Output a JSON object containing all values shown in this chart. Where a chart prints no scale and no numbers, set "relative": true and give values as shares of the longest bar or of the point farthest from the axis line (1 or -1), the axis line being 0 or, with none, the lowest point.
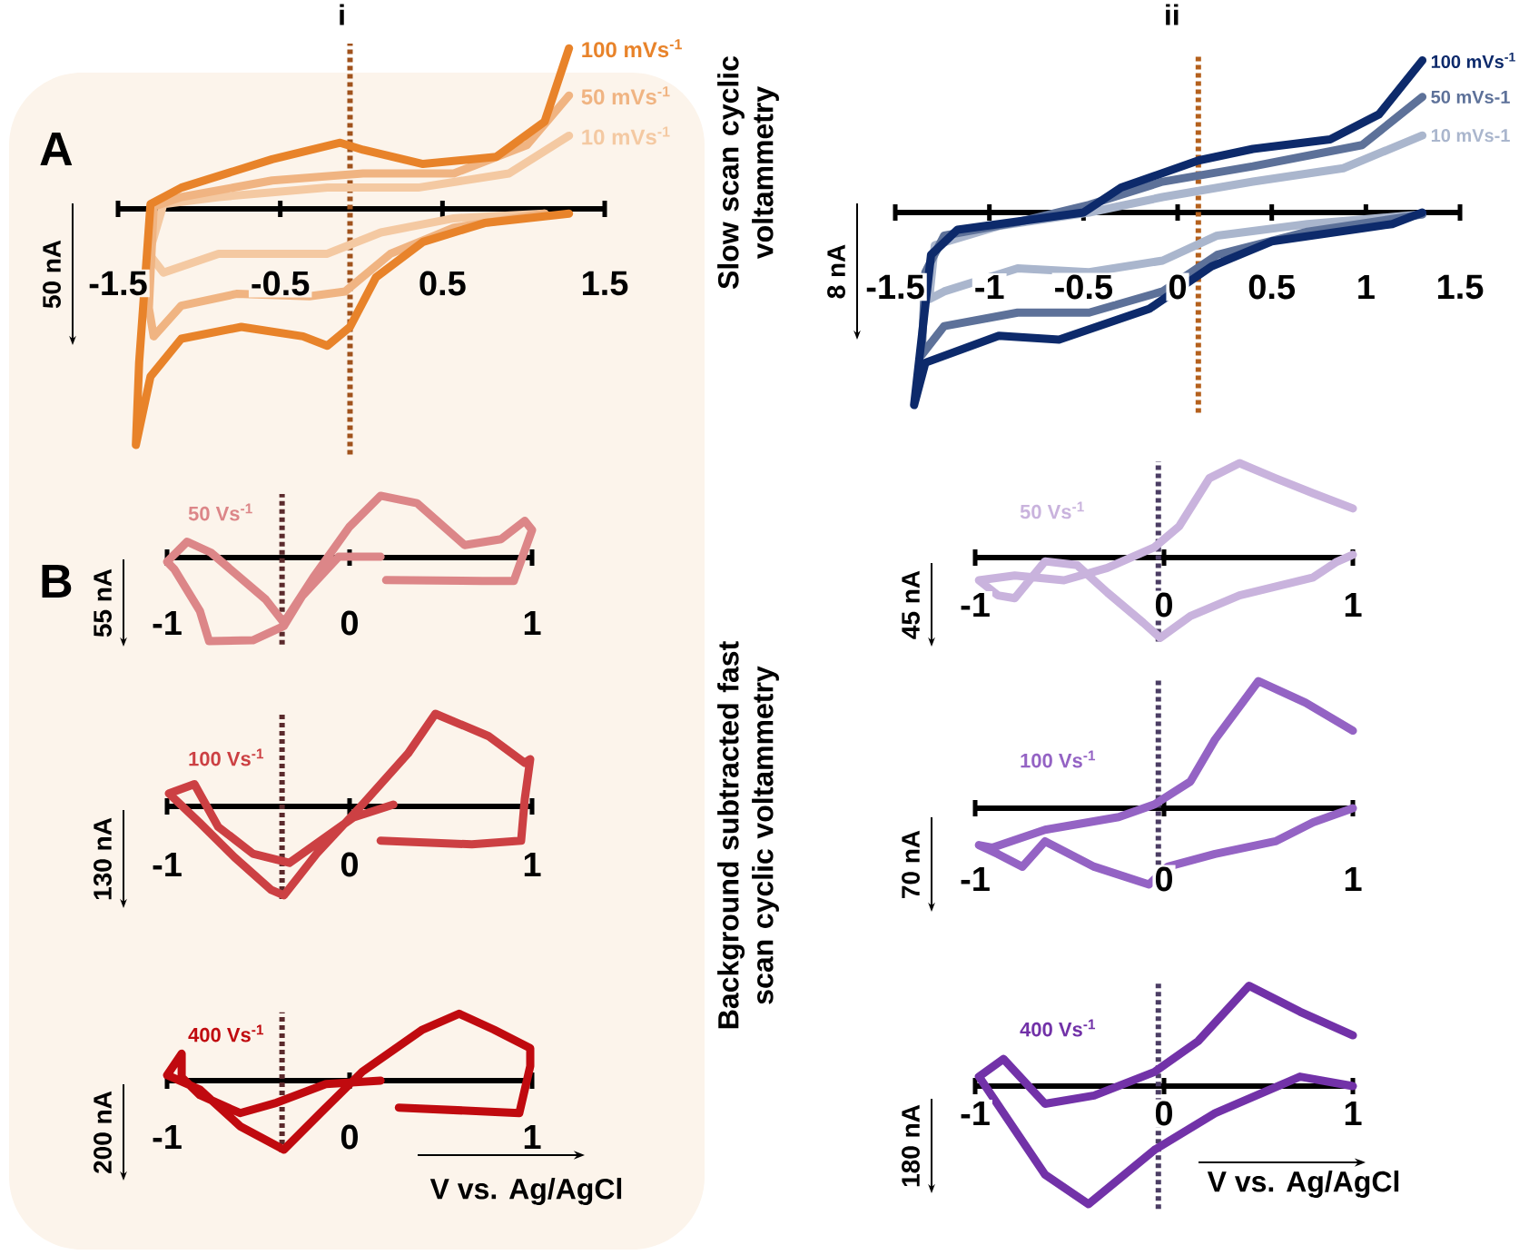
{
  "chart_data": [
    {
      "type": "line",
      "title": "i",
      "relative": true,
      "xlim": [
        -1.5,
        1.5
      ],
      "xticks": [
        -1.5,
        -0.5,
        0.5,
        1.5
      ],
      "annotations": [
        "A",
        "50 nA",
        "Slow scan cyclic voltammetry"
      ],
      "ref_lines": [
        {
          "axis": "x",
          "value": -0.07,
          "color": "#a0521c",
          "line_style": "dotted"
        }
      ],
      "series": [
        {
          "name": "100 mVs$^{-1}$",
          "color": "#e8832a",
          "x": [
            1.28,
            1.13,
            0.83,
            0.38,
            0.01,
            -0.13,
            -0.55,
            -1.11,
            -1.3,
            -1.33,
            -1.37,
            -1.39,
            -1.3,
            -1.11,
            -0.74,
            -0.36,
            -0.21,
            -0.07,
            0.09,
            0.38,
            0.76,
            1.28
          ],
          "values": [
            0.68,
            0.37,
            0.22,
            0.19,
            0.25,
            0.28,
            0.21,
            0.09,
            0.02,
            -0.27,
            -0.65,
            -1.0,
            -0.71,
            -0.55,
            -0.5,
            -0.54,
            -0.58,
            -0.5,
            -0.29,
            -0.14,
            -0.06,
            -0.02
          ]
        },
        {
          "name": "50 mVs$^{-1}$",
          "color": "#f0b482",
          "x": [
            1.28,
            1.02,
            0.57,
            0.01,
            -0.55,
            -1.11,
            -1.28,
            -1.31,
            -1.28,
            -1.11,
            -0.77,
            -0.32,
            -0.1,
            0.18,
            0.57,
            1.13
          ],
          "values": [
            0.48,
            0.27,
            0.15,
            0.15,
            0.12,
            0.05,
            0.01,
            -0.42,
            -0.54,
            -0.41,
            -0.36,
            -0.37,
            -0.35,
            -0.19,
            -0.08,
            -0.02
          ]
        },
        {
          "name": "10 mVs$^{-1}$",
          "color": "#f4c9a2",
          "x": [
            1.28,
            0.91,
            0.35,
            -0.21,
            -0.88,
            -1.22,
            -1.31,
            -1.22,
            -0.88,
            -0.21,
            0.12,
            0.57,
            1.13
          ],
          "values": [
            0.31,
            0.15,
            0.09,
            0.09,
            0.05,
            0.02,
            -0.19,
            -0.27,
            -0.19,
            -0.19,
            -0.1,
            -0.04,
            -0.02
          ]
        }
      ]
    },
    {
      "type": "line",
      "title": "ii",
      "relative": true,
      "xlim": [
        -1.5,
        1.5
      ],
      "xticks": [
        -1.5,
        -1,
        -0.5,
        0,
        0.5,
        1,
        1.5
      ],
      "annotations": [
        "8 nA"
      ],
      "ref_lines": [
        {
          "axis": "x",
          "value": 0.11,
          "color": "#b4601c",
          "line_style": "dotted"
        }
      ],
      "series": [
        {
          "name": "100 mVs$^{-1}$",
          "color": "#0d2a6b",
          "x": [
            1.3,
            1.07,
            0.81,
            0.4,
            0.11,
            -0.3,
            -0.5,
            -0.95,
            -1.17,
            -1.31,
            -1.4,
            -1.34,
            -0.95,
            -0.63,
            -0.15,
            0.18,
            0.5,
            1.14,
            1.3
          ],
          "values": [
            0.79,
            0.51,
            0.38,
            0.33,
            0.27,
            0.13,
            0,
            -0.06,
            -0.09,
            -0.22,
            -1.0,
            -0.78,
            -0.64,
            -0.66,
            -0.5,
            -0.28,
            -0.15,
            -0.06,
            0
          ]
        },
        {
          "name": "50 mVs-1",
          "color": "#5d7199",
          "x": [
            1.3,
            0.98,
            0.4,
            -0.08,
            -0.47,
            -0.85,
            -1.24,
            -1.34,
            -1.36,
            -1.24,
            -0.85,
            -0.47,
            -0.08,
            0.21,
            0.69,
            1.3
          ],
          "values": [
            0.6,
            0.35,
            0.24,
            0.16,
            0.04,
            -0.05,
            -0.12,
            -0.31,
            -0.74,
            -0.59,
            -0.52,
            -0.52,
            -0.41,
            -0.22,
            -0.1,
            -0.01
          ]
        },
        {
          "name": "10 mVs-1",
          "color": "#aab6cd",
          "x": [
            1.3,
            0.88,
            0.4,
            -0.08,
            -0.47,
            -0.95,
            -1.29,
            -1.32,
            -1.24,
            -0.85,
            -0.47,
            -0.08,
            0.21,
            0.69,
            1.3
          ],
          "values": [
            0.4,
            0.23,
            0.16,
            0.08,
            0,
            -0.07,
            -0.17,
            -0.45,
            -0.41,
            -0.29,
            -0.31,
            -0.25,
            -0.12,
            -0.06,
            -0.01
          ]
        }
      ]
    },
    {
      "type": "line",
      "relative": true,
      "xlim": [
        -1,
        1
      ],
      "xticks": [
        -1,
        0,
        1
      ],
      "annotations": [
        "B",
        "55 nA",
        "Background subtracted fast scan cyclic voltammetry"
      ],
      "ref_lines": [
        {
          "axis": "x",
          "value": -0.37,
          "color": "#5b2a2c",
          "line_style": "dotted"
        }
      ],
      "series": [
        {
          "name": "50 Vs$^{-1}$",
          "color": "#dc8688",
          "x": [
            0.17,
            -0.06,
            -0.26,
            -0.36,
            -0.53,
            -0.77,
            -0.82,
            -0.96,
            -1.0,
            -0.89,
            -0.76,
            -0.46,
            -0.36,
            -0.2,
            0.0,
            0.17,
            0.37,
            0.63,
            0.83,
            0.96,
            1.0,
            0.9,
            0.73,
            0.2
          ],
          "values": [
            0.01,
            0.01,
            -0.46,
            -0.82,
            -0.99,
            -1.0,
            -0.64,
            -0.14,
            -0.05,
            0.19,
            0.06,
            -0.5,
            -0.78,
            -0.24,
            0.37,
            0.74,
            0.65,
            0.15,
            0.22,
            0.44,
            0.33,
            -0.28,
            -0.28,
            -0.27
          ]
        }
      ]
    },
    {
      "type": "line",
      "relative": true,
      "xlim": [
        -1,
        1
      ],
      "xticks": [
        -1,
        0,
        1
      ],
      "annotations": [
        "130 nA"
      ],
      "ref_lines": [
        {
          "axis": "x",
          "value": -0.37,
          "color": "#5b2a2c",
          "line_style": "dotted"
        }
      ],
      "series": [
        {
          "name": "100 Vs$^{-1}$",
          "color": "#cc4043",
          "x": [
            0.24,
            0.02,
            -0.33,
            -0.53,
            -0.72,
            -0.85,
            -0.99,
            -0.82,
            -0.63,
            -0.43,
            -0.36,
            -0.18,
            0.07,
            0.32,
            0.47,
            0.76,
            0.96,
            0.99,
            0.96,
            0.94,
            0.67,
            0.17
          ],
          "values": [
            0.02,
            -0.12,
            -0.61,
            -0.51,
            -0.22,
            0.24,
            0.14,
            -0.18,
            -0.55,
            -0.9,
            -0.96,
            -0.51,
            0.02,
            0.57,
            1.0,
            0.76,
            0.47,
            0.51,
            0.08,
            -0.37,
            -0.41,
            -0.37
          ]
        }
      ]
    },
    {
      "type": "line",
      "relative": true,
      "xlim": [
        -1,
        1
      ],
      "xticks": [
        -1,
        0,
        1
      ],
      "xlabel": "V vs. Ag/AgCl",
      "annotations": [
        "200 nA"
      ],
      "ref_lines": [
        {
          "axis": "x",
          "value": -0.37,
          "color": "#5b2a2c",
          "line_style": "dotted"
        }
      ],
      "series": [
        {
          "name": "400 Vs$^{-1}$",
          "color": "#c00a0f",
          "x": [
            0.17,
            -0.13,
            -0.4,
            -0.6,
            -0.82,
            -0.92,
            -0.92,
            -1.0,
            -0.82,
            -0.6,
            -0.36,
            -0.16,
            0.07,
            0.4,
            0.6,
            0.79,
            0.99,
            0.99,
            0.93,
            0.27
          ],
          "values": [
            0,
            -0.05,
            -0.32,
            -0.47,
            -0.21,
            0.05,
            0.39,
            0.08,
            -0.13,
            -0.66,
            -1.0,
            -0.47,
            0.13,
            0.74,
            0.97,
            0.74,
            0.47,
            0.21,
            -0.47,
            -0.39
          ]
        }
      ]
    },
    {
      "type": "line",
      "relative": true,
      "xlim": [
        -1,
        1
      ],
      "xticks": [
        -1,
        0,
        1
      ],
      "annotations": [
        "45 nA"
      ],
      "ref_lines": [
        {
          "axis": "x",
          "value": -0.03,
          "color": "#4b3d63",
          "line_style": "dotted"
        }
      ],
      "series": [
        {
          "name": "50 Vs$^{-1}$",
          "color": "#c9b3dd",
          "x": [
            1.0,
            0.79,
            0.59,
            0.4,
            0.24,
            0.08,
            -0.05,
            -0.3,
            -0.53,
            -0.79,
            -0.98,
            -0.88,
            -0.79,
            -0.63,
            -0.46,
            -0.3,
            -0.11,
            -0.02,
            0.14,
            0.4,
            0.79,
            0.91,
            1.0
          ],
          "values": [
            0.52,
            0.68,
            0.84,
            1.0,
            0.84,
            0.33,
            0.11,
            -0.11,
            -0.24,
            -0.19,
            -0.24,
            -0.4,
            -0.43,
            -0.04,
            -0.08,
            -0.37,
            -0.69,
            -0.85,
            -0.62,
            -0.4,
            -0.21,
            -0.05,
            0.03
          ]
        }
      ]
    },
    {
      "type": "line",
      "relative": true,
      "xlim": [
        -1,
        1
      ],
      "xticks": [
        -1,
        0,
        1
      ],
      "annotations": [
        "70 nA"
      ],
      "ref_lines": [
        {
          "axis": "x",
          "value": -0.03,
          "color": "#4b3d63",
          "line_style": "dotted"
        }
      ],
      "series": [
        {
          "name": "100 Vs$^{-1}$",
          "color": "#9463c4",
          "x": [
            1.0,
            0.75,
            0.5,
            0.27,
            0.14,
            -0.05,
            -0.24,
            -0.63,
            -0.91,
            -0.98,
            -0.88,
            -0.75,
            -0.63,
            -0.37,
            -0.08,
            0.02,
            0.27,
            0.59,
            0.79,
            1.0
          ],
          "values": [
            0.61,
            0.83,
            1.0,
            0.54,
            0.21,
            0.03,
            -0.07,
            -0.17,
            -0.31,
            -0.29,
            -0.36,
            -0.46,
            -0.26,
            -0.46,
            -0.6,
            -0.46,
            -0.36,
            -0.26,
            -0.11,
            0.0
          ]
        }
      ]
    },
    {
      "type": "line",
      "relative": true,
      "xlim": [
        -1,
        1
      ],
      "xticks": [
        -1,
        0,
        1
      ],
      "xlabel": "V vs. Ag/AgCl",
      "annotations": [
        "180 nA"
      ],
      "ref_lines": [
        {
          "axis": "x",
          "value": -0.03,
          "color": "#4b3d63",
          "line_style": "dotted"
        }
      ],
      "series": [
        {
          "name": "400 Vs$^{-1}$",
          "color": "#7232a8",
          "x": [
            1.0,
            0.72,
            0.27,
            -0.05,
            -0.4,
            -0.63,
            -0.98,
            -0.85,
            -0.63,
            -0.37,
            -0.05,
            0.18,
            0.45,
            0.72,
            1.0
          ],
          "values": [
            0,
            0.08,
            -0.23,
            -0.54,
            -1.0,
            -0.75,
            0.08,
            0.23,
            -0.15,
            -0.08,
            0.12,
            0.38,
            0.85,
            0.63,
            0.43
          ]
        }
      ]
    }
  ]
}
